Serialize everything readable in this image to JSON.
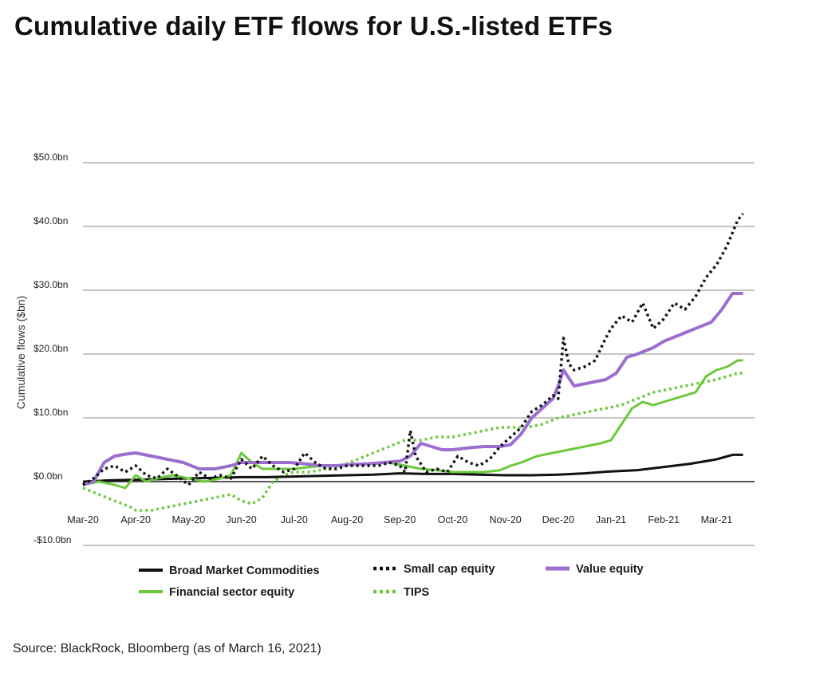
{
  "title": "Cumulative daily ETF flows for U.S.-listed ETFs",
  "source": "Source: BlackRock, Bloomberg (as of March 16, 2021)",
  "colors": {
    "commodities": "#111111",
    "small_cap": "#111111",
    "value": "#9a6fce",
    "financial": "#6cc93b",
    "tips": "#6cc93b",
    "grid": "#8a8a8a"
  },
  "chart_data": {
    "type": "line",
    "title": "Cumulative daily ETF flows for U.S.-listed ETFs",
    "xlabel": "",
    "ylabel": "Cumulative flows ($bn)",
    "ylim": [
      -10,
      50
    ],
    "xlim": [
      0,
      12.5
    ],
    "yticks": [
      {
        "value": 50,
        "label": "$50.0bn"
      },
      {
        "value": 40,
        "label": "$40.0bn"
      },
      {
        "value": 30,
        "label": "$30.0bn"
      },
      {
        "value": 20,
        "label": "$20.0bn"
      },
      {
        "value": 10,
        "label": "$10.0bn"
      },
      {
        "value": 0,
        "label": "$0.0bn"
      },
      {
        "value": -10,
        "label": "-$10.0bn"
      }
    ],
    "xticks": [
      {
        "value": 0,
        "label": "Mar-20"
      },
      {
        "value": 1,
        "label": "Apr-20"
      },
      {
        "value": 2,
        "label": "May-20"
      },
      {
        "value": 3,
        "label": "Jun-20"
      },
      {
        "value": 4,
        "label": "Jul-20"
      },
      {
        "value": 5,
        "label": "Aug-20"
      },
      {
        "value": 6,
        "label": "Sep-20"
      },
      {
        "value": 7,
        "label": "Oct-20"
      },
      {
        "value": 8,
        "label": "Nov-20"
      },
      {
        "value": 9,
        "label": "Dec-20"
      },
      {
        "value": 10,
        "label": "Jan-21"
      },
      {
        "value": 11,
        "label": "Feb-21"
      },
      {
        "value": 12,
        "label": "Mar-21"
      }
    ],
    "legend": [
      {
        "key": "commodities",
        "label": "Broad Market Commodities"
      },
      {
        "key": "small_cap",
        "label": "Small cap equity"
      },
      {
        "key": "value",
        "label": "Value equity"
      },
      {
        "key": "financial",
        "label": "Financial sector equity"
      },
      {
        "key": "tips",
        "label": "TIPS"
      }
    ],
    "series": [
      {
        "key": "commodities",
        "name": "Broad Market Commodities",
        "style": "solid",
        "x": [
          0,
          0.5,
          1,
          1.5,
          2,
          2.5,
          3,
          3.5,
          4,
          4.5,
          5,
          5.5,
          6,
          6.5,
          7,
          7.5,
          8,
          8.5,
          9,
          9.5,
          10,
          10.5,
          11,
          11.5,
          12,
          12.3,
          12.5
        ],
        "y": [
          0,
          0.2,
          0.3,
          0.4,
          0.5,
          0.6,
          0.7,
          0.7,
          0.8,
          0.9,
          1.0,
          1.1,
          1.3,
          1.2,
          1.2,
          1.1,
          1.0,
          1.0,
          1.1,
          1.3,
          1.6,
          1.8,
          2.3,
          2.8,
          3.5,
          4.2,
          4.2
        ]
      },
      {
        "key": "small_cap",
        "name": "Small cap equity",
        "style": "dotted",
        "x": [
          0,
          0.2,
          0.4,
          0.6,
          0.8,
          1,
          1.2,
          1.4,
          1.6,
          1.8,
          2,
          2.2,
          2.4,
          2.6,
          2.8,
          3,
          3.2,
          3.4,
          3.6,
          3.8,
          4,
          4.2,
          4.4,
          4.6,
          4.8,
          5,
          5.2,
          5.4,
          5.6,
          5.8,
          6,
          6.1,
          6.2,
          6.3,
          6.5,
          6.7,
          6.9,
          7.1,
          7.3,
          7.5,
          7.7,
          7.9,
          8.1,
          8.3,
          8.5,
          8.7,
          8.9,
          9.0,
          9.1,
          9.2,
          9.3,
          9.5,
          9.7,
          9.9,
          10.0,
          10.2,
          10.4,
          10.6,
          10.8,
          11.0,
          11.2,
          11.4,
          11.6,
          11.8,
          12.0,
          12.2,
          12.4,
          12.5
        ],
        "y": [
          -0.5,
          0.5,
          2.0,
          2.5,
          1.5,
          2.5,
          1.0,
          0.5,
          2.0,
          0.8,
          -0.5,
          1.5,
          0.5,
          1.0,
          0.5,
          3.5,
          2.0,
          4.0,
          2.5,
          1.5,
          2.0,
          4.5,
          3.0,
          2.0,
          2.0,
          2.5,
          2.5,
          2.5,
          2.5,
          3.0,
          2.5,
          1.5,
          8.0,
          4.0,
          1.5,
          2.0,
          1.5,
          4.0,
          3.0,
          2.5,
          3.5,
          5.5,
          7.0,
          8.5,
          11.0,
          12.0,
          13.5,
          13.0,
          22.5,
          18.5,
          17.5,
          18.0,
          19.0,
          22.5,
          24.0,
          26.0,
          25.0,
          28.0,
          24.0,
          25.5,
          28.0,
          27.0,
          29.0,
          32.0,
          34.0,
          37.0,
          41.0,
          42.0
        ]
      },
      {
        "key": "value",
        "name": "Value equity",
        "style": "solid",
        "x": [
          0,
          0.2,
          0.4,
          0.6,
          0.8,
          1,
          1.3,
          1.6,
          1.9,
          2.2,
          2.5,
          2.8,
          3.0,
          3.3,
          3.6,
          3.9,
          4.2,
          4.5,
          4.8,
          5.1,
          5.4,
          5.7,
          6.0,
          6.2,
          6.4,
          6.6,
          6.8,
          7.0,
          7.3,
          7.6,
          7.9,
          8.1,
          8.3,
          8.5,
          8.7,
          8.9,
          9.0,
          9.1,
          9.3,
          9.6,
          9.9,
          10.1,
          10.3,
          10.5,
          10.8,
          11.0,
          11.3,
          11.6,
          11.9,
          12.1,
          12.3,
          12.5
        ],
        "y": [
          -0.5,
          0,
          3.0,
          4.0,
          4.3,
          4.5,
          4.0,
          3.5,
          3.0,
          2.0,
          2.0,
          2.5,
          3.0,
          3.0,
          3.0,
          3.0,
          2.8,
          2.5,
          2.5,
          2.7,
          2.8,
          3.0,
          3.2,
          4.0,
          6.0,
          5.5,
          5.0,
          5.0,
          5.3,
          5.5,
          5.5,
          5.8,
          7.5,
          10.0,
          11.5,
          13.0,
          15.0,
          17.5,
          15.0,
          15.5,
          16.0,
          17.0,
          19.5,
          20.0,
          21.0,
          22.0,
          23.0,
          24.0,
          25.0,
          27.0,
          29.5,
          29.5
        ]
      },
      {
        "key": "financial",
        "name": "Financial sector equity",
        "style": "solid",
        "x": [
          0,
          0.3,
          0.6,
          0.8,
          1,
          1.2,
          1.4,
          1.7,
          2.0,
          2.3,
          2.6,
          2.8,
          3.0,
          3.2,
          3.4,
          3.7,
          4.0,
          4.3,
          4.6,
          4.9,
          5.2,
          5.5,
          5.8,
          6.1,
          6.4,
          6.7,
          7.0,
          7.3,
          7.6,
          7.9,
          8.1,
          8.3,
          8.6,
          8.9,
          9.2,
          9.5,
          9.8,
          10.0,
          10.2,
          10.4,
          10.6,
          10.8,
          11.0,
          11.2,
          11.4,
          11.6,
          11.8,
          12.0,
          12.2,
          12.4,
          12.5
        ],
        "y": [
          -0.5,
          0,
          -0.5,
          -1.0,
          1.0,
          0,
          0.5,
          1.0,
          0.5,
          0,
          0.5,
          1.0,
          4.5,
          3.0,
          2.0,
          2.0,
          2.0,
          2.3,
          2.5,
          2.5,
          2.7,
          2.8,
          3.0,
          2.5,
          2.0,
          1.8,
          1.5,
          1.5,
          1.5,
          1.8,
          2.5,
          3.0,
          4.0,
          4.5,
          5.0,
          5.5,
          6.0,
          6.5,
          9.0,
          11.5,
          12.5,
          12.0,
          12.5,
          13.0,
          13.5,
          14.0,
          16.5,
          17.5,
          18.0,
          19.0,
          19.0
        ]
      },
      {
        "key": "tips",
        "name": "TIPS",
        "style": "dotted",
        "x": [
          0,
          0.3,
          0.6,
          0.9,
          1.0,
          1.3,
          1.6,
          1.9,
          2.2,
          2.5,
          2.8,
          3.0,
          3.2,
          3.4,
          3.6,
          3.8,
          4.0,
          4.3,
          4.6,
          4.9,
          5.2,
          5.5,
          5.8,
          6.1,
          6.4,
          6.7,
          7.0,
          7.3,
          7.6,
          7.9,
          8.1,
          8.4,
          8.7,
          9.0,
          9.3,
          9.6,
          9.9,
          10.2,
          10.5,
          10.8,
          11.1,
          11.4,
          11.7,
          12.0,
          12.2,
          12.4,
          12.5
        ],
        "y": [
          -1.0,
          -2.0,
          -3.0,
          -4.0,
          -4.5,
          -4.5,
          -4.0,
          -3.5,
          -3.0,
          -2.5,
          -2.0,
          -3.0,
          -3.5,
          -2.5,
          0,
          1.0,
          1.5,
          1.5,
          2.0,
          2.5,
          3.5,
          4.5,
          5.5,
          6.5,
          6.5,
          7.0,
          7.0,
          7.5,
          8.0,
          8.5,
          8.5,
          8.5,
          9.0,
          10.0,
          10.5,
          11.0,
          11.5,
          12.0,
          13.0,
          14.0,
          14.5,
          15.0,
          15.5,
          16.0,
          16.5,
          17.0,
          17.0
        ]
      }
    ]
  }
}
